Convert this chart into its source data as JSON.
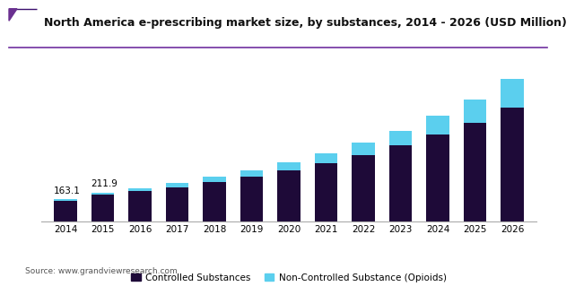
{
  "title": "North America e-prescribing market size, by substances, 2014 - 2026 (USD Million)",
  "years": [
    2014,
    2015,
    2016,
    2017,
    2018,
    2019,
    2020,
    2021,
    2022,
    2023,
    2024,
    2025,
    2026
  ],
  "controlled": [
    150,
    195,
    222,
    252,
    290,
    328,
    378,
    428,
    488,
    558,
    638,
    728,
    838
  ],
  "non_controlled": [
    13,
    17,
    24,
    32,
    38,
    47,
    58,
    72,
    90,
    110,
    138,
    168,
    210
  ],
  "controlled_color": "#1e0a38",
  "non_controlled_color": "#5bcfee",
  "label_controlled": "Controlled Substances",
  "label_non_controlled": "Non-Controlled Substance (Opioids)",
  "annotations": [
    {
      "year_idx": 0,
      "value": "163.1"
    },
    {
      "year_idx": 1,
      "value": "211.9"
    }
  ],
  "source_text": "Source: www.grandviewresearch.com",
  "title_fontsize": 9.0,
  "bar_width": 0.62,
  "ylim": [
    0,
    1150
  ],
  "background_color": "#ffffff",
  "header_line_color": "#6a1aaf",
  "title_stripe_colors": [
    "#3d1060",
    "#5a2080"
  ],
  "legend_fontsize": 7.5,
  "xtick_fontsize": 7.5,
  "source_fontsize": 6.5
}
